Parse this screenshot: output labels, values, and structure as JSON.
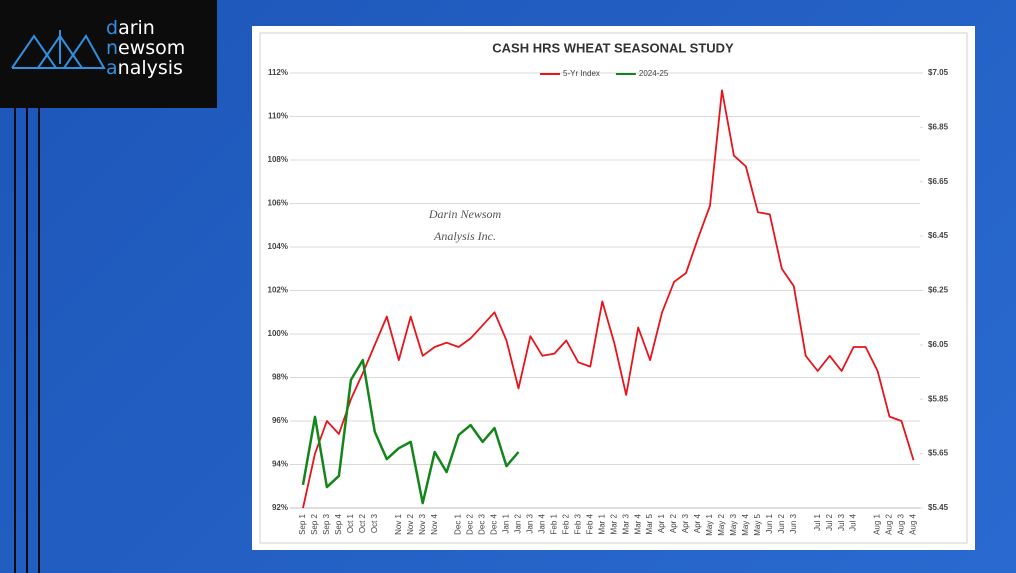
{
  "logo": {
    "lines": [
      "darin",
      "newsom",
      "analysis"
    ]
  },
  "chart_data": {
    "type": "line",
    "title": "CASH HRS WHEAT SEASONAL STUDY",
    "annotation": [
      "Darin Newsom",
      "Analysis Inc."
    ],
    "categories": [
      "Sep 1",
      "Sep 2",
      "Sep 3",
      "Sep 4",
      "Oct 1",
      "Oct 2",
      "Oct 3",
      null,
      "Nov 1",
      "Nov 2",
      "Nov 3",
      "Nov 4",
      null,
      "Dec 1",
      "Dec 2",
      "Dec 3",
      "Dec 4",
      "Jan 1",
      "Jan 2",
      "Jan 3",
      "Jan 4",
      "Feb 1",
      "Feb 2",
      "Feb 3",
      "Feb 4",
      "Mar 1",
      "Mar 2",
      "Mar 3",
      "Mar 4",
      "Mar 5",
      "Apr 1",
      "Apr 2",
      "Apr 3",
      "Apr 4",
      "May 1",
      "May 2",
      "May 3",
      "May 4",
      "May 5",
      "Jun 1",
      "Jun 2",
      "Jun 3",
      null,
      "Jul 1",
      "Jul 2",
      "Jul 3",
      "Jul 4",
      null,
      "Aug 1",
      "Aug 2",
      "Aug 3",
      "Aug 4"
    ],
    "series": [
      {
        "name": "5-Yr Index",
        "color": "#e8141b",
        "values": [
          92,
          94.5,
          96,
          95.4,
          97,
          98.2,
          99.5,
          100.8,
          98.8,
          100.8,
          99,
          99.4,
          99.6,
          99.4,
          99.8,
          100.4,
          101,
          99.7,
          97.5,
          99.9,
          99,
          99.1,
          99.7,
          98.7,
          98.5,
          101.5,
          99.6,
          97.2,
          100.3,
          98.8,
          101,
          102.4,
          102.8,
          104.4,
          105.9,
          111.2,
          108.2,
          107.7,
          105.6,
          105.5,
          103,
          102.2,
          99,
          98.3,
          99,
          98.3,
          99.4,
          99.4,
          98.3,
          96.2,
          96,
          94.2
        ]
      },
      {
        "name": "2024-25",
        "color": "#13861b",
        "axis": "y2",
        "values": [
          5.535,
          5.785,
          5.527,
          5.568,
          5.921,
          5.994,
          5.73,
          5.63,
          5.67,
          5.693,
          5.468,
          5.656,
          5.582,
          5.718,
          5.755,
          5.693,
          5.744,
          5.604,
          5.656,
          null,
          null,
          null,
          null,
          null,
          null,
          null,
          null,
          null,
          null,
          null,
          null,
          null,
          null,
          null,
          null,
          null,
          null,
          null,
          null,
          null,
          null,
          null,
          null,
          null,
          null,
          null,
          null,
          null,
          null,
          null,
          null,
          null
        ]
      }
    ],
    "ylim": [
      92,
      112
    ],
    "yticks": [
      {
        "value": 92,
        "label": "92%"
      },
      {
        "value": 94,
        "label": "94%"
      },
      {
        "value": 96,
        "label": "96%"
      },
      {
        "value": 98,
        "label": "98%"
      },
      {
        "value": 100,
        "label": "100%"
      },
      {
        "value": 102,
        "label": "102%"
      },
      {
        "value": 104,
        "label": "104%"
      },
      {
        "value": 106,
        "label": "106%"
      },
      {
        "value": 108,
        "label": "108%"
      },
      {
        "value": 110,
        "label": "110%"
      },
      {
        "value": 112,
        "label": "112%"
      }
    ],
    "y2lim": [
      5.45,
      7.05
    ],
    "y2ticks": [
      {
        "value": 5.45,
        "label": "$5.45"
      },
      {
        "value": 5.65,
        "label": "$5.65"
      },
      {
        "value": 5.85,
        "label": "$5.85"
      },
      {
        "value": 6.05,
        "label": "$6.05"
      },
      {
        "value": 6.25,
        "label": "$6.25"
      },
      {
        "value": 6.45,
        "label": "$6.45"
      },
      {
        "value": 6.65,
        "label": "$6.65"
      },
      {
        "value": 6.85,
        "label": "$6.85"
      },
      {
        "value": 7.05,
        "label": "$7.05"
      }
    ],
    "grid": true,
    "legend": "top"
  }
}
